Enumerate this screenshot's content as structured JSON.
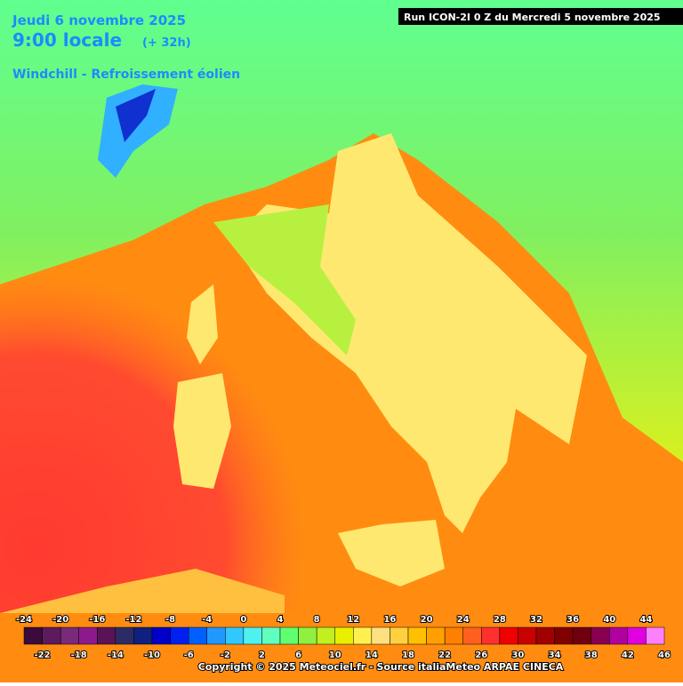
{
  "header": {
    "date": "Jeudi 6 novembre 2025",
    "time": "9:00 locale",
    "lead": "(+ 32h)",
    "parameter": "Windchill - Refroissement éolien",
    "run": "Run ICON-2I 0 Z du Mercredi 5 novembre 2025"
  },
  "legend": {
    "ticks": [
      -24,
      -22,
      -20,
      -18,
      -16,
      -14,
      -12,
      -10,
      -8,
      -6,
      -4,
      -2,
      0,
      2,
      4,
      6,
      8,
      10,
      12,
      14,
      16,
      18,
      20,
      22,
      24,
      26,
      28,
      30,
      32,
      34,
      36,
      38,
      40,
      42,
      44,
      46
    ],
    "colors": [
      "#3c0a3c",
      "#5c1c5c",
      "#7a2a7a",
      "#8c1a8c",
      "#5a1456",
      "#2c2c64",
      "#102080",
      "#0000c8",
      "#0020f0",
      "#0060ff",
      "#2098ff",
      "#30c8ff",
      "#50f0f0",
      "#60ffc0",
      "#60ff70",
      "#90f040",
      "#c0f020",
      "#e8f000",
      "#fff050",
      "#ffe080",
      "#ffd040",
      "#ffc000",
      "#ffa000",
      "#ff8000",
      "#ff6020",
      "#ff3030",
      "#f00000",
      "#c80000",
      "#a00000",
      "#800000",
      "#700010",
      "#880050",
      "#b000a0",
      "#e000e0",
      "#ff80ff"
    ]
  },
  "footer": {
    "copyright": "Copyright © 2025 Meteociel.fr - Source italiaMeteo ARPAE CINECA"
  }
}
